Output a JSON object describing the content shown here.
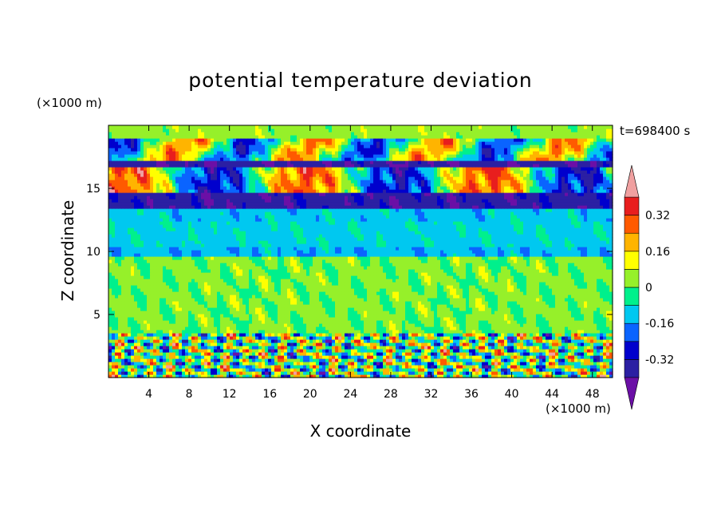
{
  "chart_data": {
    "type": "heatmap",
    "title": "potential temperature deviation",
    "xlabel": "X coordinate",
    "ylabel": "Z coordinate",
    "x_unit": "(×1000 m)",
    "y_unit": "(×1000 m)",
    "time_label": "t=698400 s",
    "xlim": [
      0,
      50
    ],
    "ylim": [
      0,
      20
    ],
    "x_ticks": [
      4,
      8,
      12,
      16,
      20,
      24,
      28,
      32,
      36,
      40,
      44,
      48
    ],
    "y_ticks": [
      5,
      10,
      15
    ],
    "colorbar": {
      "levels": [
        -0.4,
        -0.32,
        -0.24,
        -0.16,
        -0.08,
        0,
        0.08,
        0.16,
        0.24,
        0.32,
        0.4
      ],
      "tick_labels": [
        "-0.32",
        "-0.16",
        "0",
        "0.16",
        "0.32"
      ],
      "tick_values": [
        -0.32,
        -0.16,
        0,
        0.16,
        0.32
      ],
      "colors": [
        "#6b0fa6",
        "#2b1fa3",
        "#0000cd",
        "#0a64ff",
        "#00c8f0",
        "#00f08c",
        "#96f02a",
        "#ffff00",
        "#ffb400",
        "#ff5a00",
        "#e81e1e",
        "#f0a0a0"
      ],
      "extend": "both"
    }
  }
}
